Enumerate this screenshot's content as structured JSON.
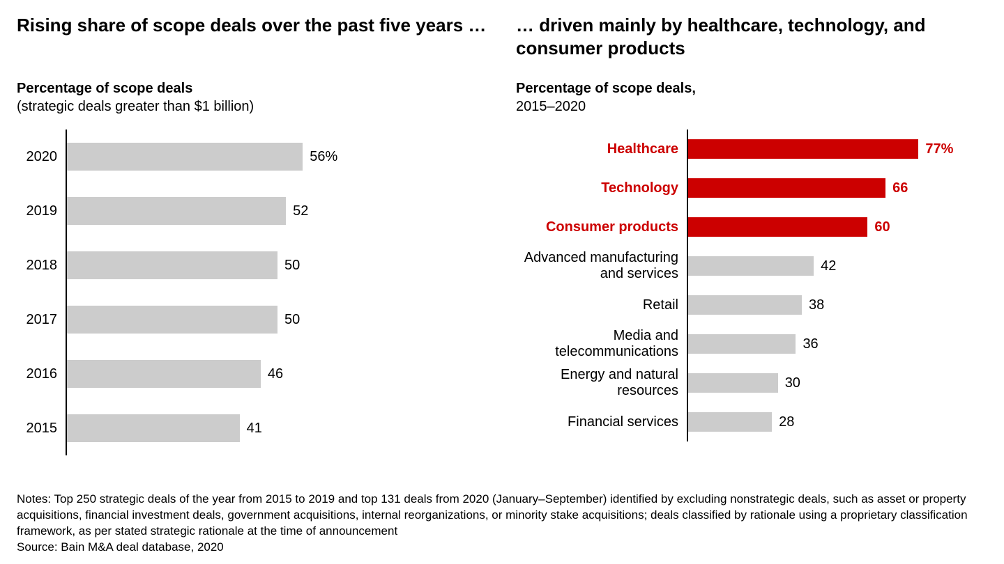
{
  "colors": {
    "gray_bar": "#cccccc",
    "red_bar": "#cc0000",
    "text": "#000000",
    "highlight_text": "#cc0000",
    "background": "#ffffff"
  },
  "left_panel": {
    "title": "Rising share of scope deals over the past five years …",
    "subtitle_bold": "Percentage of scope deals",
    "subtitle_light": "(strategic deals greater than $1 billion)",
    "max_value": 100,
    "rows": [
      {
        "label": "2020",
        "value": 56,
        "value_label": "56%"
      },
      {
        "label": "2019",
        "value": 52,
        "value_label": "52"
      },
      {
        "label": "2018",
        "value": 50,
        "value_label": "50"
      },
      {
        "label": "2017",
        "value": 50,
        "value_label": "50"
      },
      {
        "label": "2016",
        "value": 46,
        "value_label": "46"
      },
      {
        "label": "2015",
        "value": 41,
        "value_label": "41"
      }
    ]
  },
  "right_panel": {
    "title": "… driven mainly by healthcare, technology, and consumer products",
    "subtitle_bold": "Percentage of scope deals,",
    "subtitle_light": "2015–2020",
    "max_value": 100,
    "rows": [
      {
        "label": "Healthcare",
        "value": 77,
        "value_label": "77%",
        "highlight": true
      },
      {
        "label": "Technology",
        "value": 66,
        "value_label": "66",
        "highlight": true
      },
      {
        "label": "Consumer products",
        "value": 60,
        "value_label": "60",
        "highlight": true
      },
      {
        "label": "Advanced manufacturing and services",
        "value": 42,
        "value_label": "42",
        "highlight": false
      },
      {
        "label": "Retail",
        "value": 38,
        "value_label": "38",
        "highlight": false
      },
      {
        "label": "Media and telecommunications",
        "value": 36,
        "value_label": "36",
        "highlight": false
      },
      {
        "label": "Energy and natural resources",
        "value": 30,
        "value_label": "30",
        "highlight": false
      },
      {
        "label": "Financial services",
        "value": 28,
        "value_label": "28",
        "highlight": false
      }
    ]
  },
  "footer": {
    "notes": "Notes: Top 250 strategic deals of the year from 2015 to 2019 and top 131 deals from 2020 (January–September) identified by excluding nonstrategic deals, such as asset or property acquisitions, financial investment deals, government acquisitions, internal reorganizations, or minority stake acquisitions; deals classified by rationale using a proprietary classification framework, as per stated strategic rationale at the time of announcement",
    "source": "Source: Bain M&A deal database, 2020"
  }
}
